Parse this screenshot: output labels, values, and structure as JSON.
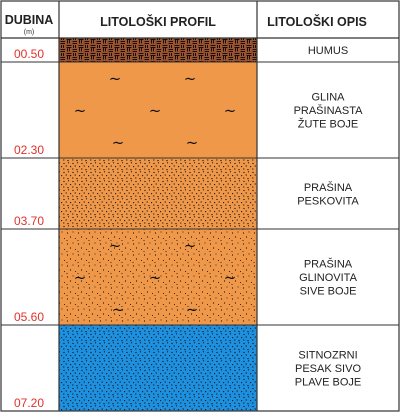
{
  "header": {
    "depth_title": "DUBINA",
    "depth_unit": "(m)",
    "profile_title": "LITOLOŠKI PROFIL",
    "description_title": "LITOLOŠKI OPIS"
  },
  "layers": [
    {
      "name": "humus",
      "bottom_depth_label": "00.50",
      "description": [
        "HUMUS"
      ],
      "pattern": "humus",
      "fill_color": "#a0522d",
      "tilde_rows": 0
    },
    {
      "name": "glina",
      "bottom_depth_label": "02.30",
      "description": [
        "GLINA",
        "PRAŠINASTA",
        "ŽUTE BOJE"
      ],
      "pattern": "clay",
      "fill_color": "#f0984a",
      "tilde_rows": 3
    },
    {
      "name": "prasina-peskovita",
      "bottom_depth_label": "03.70",
      "description": [
        "PRAŠINA",
        "PESKOVITA"
      ],
      "pattern": "sandy-silt",
      "fill_color": "#f0984a",
      "tilde_rows": 0
    },
    {
      "name": "prasina-glinovita",
      "bottom_depth_label": "05.60",
      "description": [
        "PRAŠINA",
        "GLINOVITA",
        "SIVE BOJE"
      ],
      "pattern": "clayey-silt",
      "fill_color": "#f0984a",
      "tilde_rows": 3
    },
    {
      "name": "pesak",
      "bottom_depth_label": "07.20",
      "description": [
        "SITNOZRNI",
        "PESAK SIVO",
        "PLAVE BOJE"
      ],
      "pattern": "sand",
      "fill_color": "#1e90e0",
      "tilde_rows": 0
    }
  ],
  "colors": {
    "grid": "#333333",
    "depth_label": "#e0322b"
  }
}
